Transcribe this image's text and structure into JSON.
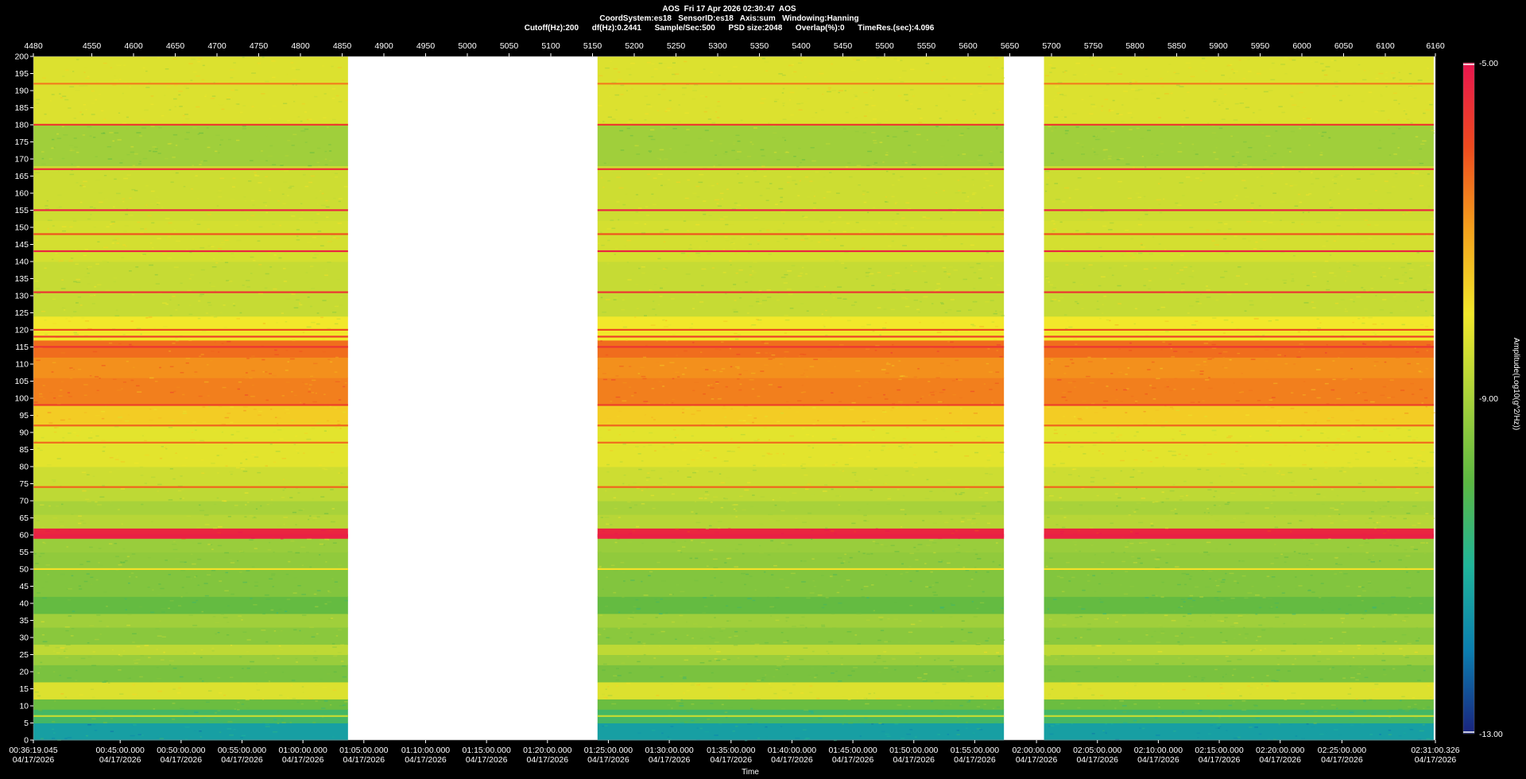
{
  "header": {
    "title": "AOS  Fri 17 Apr 2026 02:30:47  AOS",
    "line2": "CoordSystem:es18   SensorID:es18   Axis:sum   Windowing:Hanning",
    "line3": "Cutoff(Hz):200      df(Hz):0.2441      Sample/Sec:500      PSD size:2048      Overlap(%):0      TimeRes.(sec):4.096"
  },
  "chart_data": {
    "type": "heatmap",
    "top_axis": {
      "range": [
        4480,
        6160
      ],
      "ticks": [
        4480,
        4550,
        4600,
        4650,
        4700,
        4750,
        4800,
        4850,
        4900,
        4950,
        5000,
        5050,
        5100,
        5150,
        5200,
        5250,
        5300,
        5350,
        5400,
        5450,
        5500,
        5550,
        5600,
        5650,
        5700,
        5750,
        5800,
        5850,
        5900,
        5950,
        6000,
        6050,
        6100,
        6160
      ]
    },
    "y_axis": {
      "range": [
        0,
        200
      ],
      "ticks": [
        0,
        5,
        10,
        15,
        20,
        25,
        30,
        35,
        40,
        45,
        50,
        55,
        60,
        65,
        70,
        75,
        80,
        85,
        90,
        95,
        100,
        105,
        110,
        115,
        120,
        125,
        130,
        135,
        140,
        145,
        150,
        155,
        160,
        165,
        170,
        175,
        180,
        185,
        190,
        195,
        200
      ]
    },
    "x_axis": {
      "label": "Time",
      "ticks": [
        {
          "pos": 4480,
          "time": "00:36:19.045",
          "date": "04/17/2026"
        },
        {
          "pos": 4584,
          "time": "00:45:00.000",
          "date": "04/17/2026"
        },
        {
          "pos": 4657,
          "time": "00:50:00.000",
          "date": "04/17/2026"
        },
        {
          "pos": 4730,
          "time": "00:55:00.000",
          "date": "04/17/2026"
        },
        {
          "pos": 4803,
          "time": "01:00:00.000",
          "date": "04/17/2026"
        },
        {
          "pos": 4876,
          "time": "01:05:00.000",
          "date": "04/17/2026"
        },
        {
          "pos": 4950,
          "time": "01:10:00.000",
          "date": "04/17/2026"
        },
        {
          "pos": 5023,
          "time": "01:15:00.000",
          "date": "04/17/2026"
        },
        {
          "pos": 5096,
          "time": "01:20:00.000",
          "date": "04/17/2026"
        },
        {
          "pos": 5169,
          "time": "01:25:00.000",
          "date": "04/17/2026"
        },
        {
          "pos": 5242,
          "time": "01:30:00.000",
          "date": "04/17/2026"
        },
        {
          "pos": 5316,
          "time": "01:35:00.000",
          "date": "04/17/2026"
        },
        {
          "pos": 5389,
          "time": "01:40:00.000",
          "date": "04/17/2026"
        },
        {
          "pos": 5462,
          "time": "01:45:00.000",
          "date": "04/17/2026"
        },
        {
          "pos": 5535,
          "time": "01:50:00.000",
          "date": "04/17/2026"
        },
        {
          "pos": 5608,
          "time": "01:55:00.000",
          "date": "04/17/2026"
        },
        {
          "pos": 5682,
          "time": "02:00:00.000",
          "date": "04/17/2026"
        },
        {
          "pos": 5755,
          "time": "02:05:00.000",
          "date": "04/17/2026"
        },
        {
          "pos": 5828,
          "time": "02:10:00.000",
          "date": "04/17/2026"
        },
        {
          "pos": 5901,
          "time": "02:15:00.000",
          "date": "04/17/2026"
        },
        {
          "pos": 5974,
          "time": "02:20:00.000",
          "date": "04/17/2026"
        },
        {
          "pos": 6048,
          "time": "02:25:00.000",
          "date": "04/17/2026"
        },
        {
          "pos": 6160,
          "time": "02:31:00.326",
          "date": "04/17/2026"
        }
      ]
    },
    "colorbar": {
      "label": "Amplitude(Log10(g^2/Hz))",
      "max_label": "-5.00",
      "mid_label": "-9.00",
      "min_label": "-13.00",
      "range": [
        -13,
        -5
      ],
      "stops": [
        "#1a237e",
        "#0b7fb0",
        "#1fb59a",
        "#5cb842",
        "#a8d23a",
        "#f2e82a",
        "#f4a21c",
        "#ee4a1e",
        "#e8154f"
      ]
    },
    "segments": [
      {
        "start": 4480,
        "end": 4857
      },
      {
        "start": 5156,
        "end": 5643
      },
      {
        "start": 5691,
        "end": 6158
      }
    ],
    "base_bands": [
      {
        "from": 0,
        "to": 5,
        "level": -11.4
      },
      {
        "from": 5,
        "to": 9,
        "level": -10.4
      },
      {
        "from": 9,
        "to": 12,
        "level": -9.8
      },
      {
        "from": 12,
        "to": 17,
        "level": -8.3
      },
      {
        "from": 17,
        "to": 22,
        "level": -9.6
      },
      {
        "from": 22,
        "to": 25,
        "level": -9.2
      },
      {
        "from": 25,
        "to": 28,
        "level": -8.7
      },
      {
        "from": 28,
        "to": 33,
        "level": -9.4
      },
      {
        "from": 33,
        "to": 37,
        "level": -9.1
      },
      {
        "from": 37,
        "to": 42,
        "level": -9.9
      },
      {
        "from": 42,
        "to": 50,
        "level": -9.5
      },
      {
        "from": 50,
        "to": 55,
        "level": -9.3
      },
      {
        "from": 55,
        "to": 59,
        "level": -9.2
      },
      {
        "from": 59,
        "to": 62,
        "level": -5.3
      },
      {
        "from": 62,
        "to": 66,
        "level": -8.8
      },
      {
        "from": 66,
        "to": 70,
        "level": -9.0
      },
      {
        "from": 70,
        "to": 74,
        "level": -8.7
      },
      {
        "from": 74,
        "to": 80,
        "level": -8.5
      },
      {
        "from": 80,
        "to": 92,
        "level": -8.2
      },
      {
        "from": 92,
        "to": 98,
        "level": -7.6
      },
      {
        "from": 98,
        "to": 106,
        "level": -6.6
      },
      {
        "from": 106,
        "to": 112,
        "level": -6.8
      },
      {
        "from": 112,
        "to": 117,
        "level": -6.4
      },
      {
        "from": 117,
        "to": 124,
        "level": -8.0
      },
      {
        "from": 124,
        "to": 140,
        "level": -8.6
      },
      {
        "from": 140,
        "to": 152,
        "level": -8.4
      },
      {
        "from": 152,
        "to": 168,
        "level": -8.5
      },
      {
        "from": 168,
        "to": 180,
        "level": -9.1
      },
      {
        "from": 180,
        "to": 200,
        "level": -8.3
      }
    ],
    "lines": [
      {
        "f": 7,
        "level": -8.6
      },
      {
        "f": 50,
        "level": -7.9
      },
      {
        "f": 60,
        "level": -5.2
      },
      {
        "f": 74,
        "level": -6.3
      },
      {
        "f": 87,
        "level": -6.4
      },
      {
        "f": 92,
        "level": -6.3
      },
      {
        "f": 98,
        "level": -5.8
      },
      {
        "f": 115,
        "level": -5.6
      },
      {
        "f": 118,
        "level": -5.8
      },
      {
        "f": 120,
        "level": -6.0
      },
      {
        "f": 131,
        "level": -5.6
      },
      {
        "f": 143,
        "level": -5.3
      },
      {
        "f": 148,
        "level": -6.1
      },
      {
        "f": 155,
        "level": -5.3
      },
      {
        "f": 167,
        "level": -5.5
      },
      {
        "f": 180,
        "level": -5.7
      },
      {
        "f": 192,
        "level": -6.6
      }
    ]
  }
}
